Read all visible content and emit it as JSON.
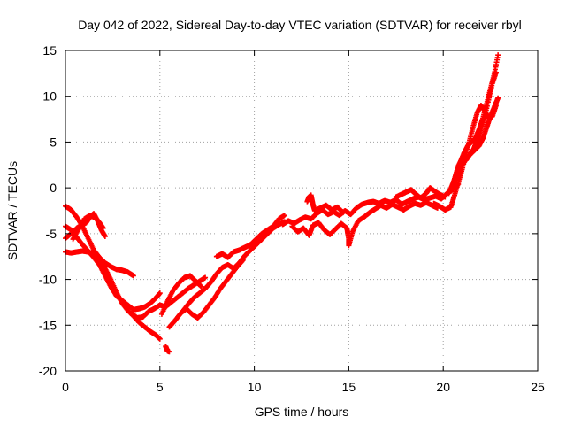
{
  "chart_data": {
    "type": "scatter",
    "title": "Day 042 of 2022, Sidereal Day-to-day VTEC variation (SDTVAR) for receiver rbyl",
    "xlabel": "GPS time / hours",
    "ylabel": "SDTVAR / TECUs",
    "xlim": [
      0,
      25
    ],
    "ylim": [
      -20,
      15
    ],
    "xticks": [
      0,
      5,
      10,
      15,
      20,
      25
    ],
    "yticks": [
      -20,
      -15,
      -10,
      -5,
      0,
      5,
      10,
      15
    ],
    "grid": true,
    "marker": "plus",
    "series": [
      {
        "name": "sdtvar-track-1",
        "color": "#ff0000",
        "points": [
          [
            0.0,
            -2.0
          ],
          [
            0.3,
            -2.4
          ],
          [
            0.6,
            -3.2
          ],
          [
            0.9,
            -4.2
          ],
          [
            1.2,
            -5.5
          ],
          [
            1.5,
            -6.8
          ],
          [
            1.8,
            -7.6
          ],
          [
            2.1,
            -8.2
          ],
          [
            2.4,
            -8.6
          ],
          [
            2.7,
            -8.9
          ],
          [
            3.0,
            -9.0
          ],
          [
            3.3,
            -9.2
          ],
          [
            3.6,
            -9.6
          ]
        ]
      },
      {
        "name": "sdtvar-track-2",
        "color": "#ff0000",
        "points": [
          [
            0.0,
            -4.2
          ],
          [
            0.3,
            -4.6
          ],
          [
            0.6,
            -5.4
          ],
          [
            0.9,
            -6.2
          ],
          [
            1.2,
            -6.9
          ],
          [
            1.5,
            -7.6
          ],
          [
            1.8,
            -8.4
          ],
          [
            2.1,
            -9.6
          ],
          [
            2.4,
            -10.8
          ],
          [
            2.7,
            -11.8
          ],
          [
            3.0,
            -12.3
          ],
          [
            3.3,
            -12.8
          ],
          [
            3.6,
            -13.3
          ],
          [
            3.9,
            -13.2
          ],
          [
            4.2,
            -13.0
          ],
          [
            4.5,
            -12.6
          ],
          [
            4.8,
            -12.0
          ],
          [
            5.0,
            -11.5
          ]
        ]
      },
      {
        "name": "sdtvar-track-3",
        "color": "#ff0000",
        "points": [
          [
            0.0,
            -7.0
          ],
          [
            0.3,
            -7.1
          ],
          [
            0.6,
            -7.0
          ],
          [
            0.9,
            -6.9
          ],
          [
            1.2,
            -7.0
          ],
          [
            1.5,
            -7.2
          ],
          [
            1.8,
            -7.8
          ],
          [
            2.1,
            -8.8
          ],
          [
            2.4,
            -10.0
          ],
          [
            2.7,
            -11.4
          ],
          [
            3.0,
            -12.6
          ],
          [
            3.3,
            -13.4
          ],
          [
            3.6,
            -14.0
          ],
          [
            3.9,
            -14.7
          ],
          [
            4.2,
            -15.2
          ],
          [
            4.5,
            -15.7
          ],
          [
            4.8,
            -16.1
          ],
          [
            5.0,
            -16.5
          ]
        ]
      },
      {
        "name": "sdtvar-track-4",
        "color": "#ff0000",
        "points": [
          [
            0.0,
            -5.5
          ],
          [
            0.3,
            -5.0
          ],
          [
            0.6,
            -4.4
          ],
          [
            0.9,
            -4.0
          ],
          [
            1.1,
            -3.8
          ],
          [
            1.3,
            -3.2
          ],
          [
            1.5,
            -2.8
          ],
          [
            1.7,
            -3.6
          ],
          [
            1.9,
            -4.6
          ],
          [
            2.1,
            -5.3
          ]
        ]
      },
      {
        "name": "sdtvar-track-5",
        "color": "#ff0000",
        "points": [
          [
            0.4,
            -5.6
          ],
          [
            0.7,
            -4.5
          ],
          [
            1.0,
            -3.4
          ],
          [
            1.3,
            -3.0
          ],
          [
            1.6,
            -3.3
          ],
          [
            1.8,
            -3.8
          ],
          [
            2.0,
            -4.4
          ]
        ]
      },
      {
        "name": "sdtvar-track-6",
        "color": "#ff0000",
        "points": [
          [
            3.5,
            -13.7
          ],
          [
            3.8,
            -14.2
          ],
          [
            4.1,
            -14.1
          ],
          [
            4.4,
            -13.5
          ],
          [
            4.7,
            -13.2
          ],
          [
            5.0,
            -12.8
          ],
          [
            5.3,
            -13.0
          ],
          [
            5.6,
            -12.5
          ],
          [
            5.9,
            -12.0
          ],
          [
            6.2,
            -11.5
          ],
          [
            6.5,
            -11.0
          ],
          [
            6.8,
            -10.6
          ],
          [
            7.1,
            -10.2
          ],
          [
            7.4,
            -9.8
          ]
        ]
      },
      {
        "name": "sdtvar-track-7",
        "color": "#ff0000",
        "points": [
          [
            5.1,
            -13.8
          ],
          [
            5.4,
            -12.4
          ],
          [
            5.7,
            -11.2
          ],
          [
            6.0,
            -10.4
          ],
          [
            6.3,
            -9.8
          ],
          [
            6.6,
            -9.6
          ],
          [
            6.9,
            -10.2
          ],
          [
            7.2,
            -10.8
          ]
        ]
      },
      {
        "name": "sdtvar-track-8",
        "color": "#ff0000",
        "points": [
          [
            5.5,
            -15.2
          ],
          [
            5.8,
            -14.5
          ],
          [
            6.1,
            -13.7
          ],
          [
            6.4,
            -13.2
          ],
          [
            6.7,
            -13.8
          ],
          [
            7.0,
            -14.2
          ],
          [
            7.3,
            -13.6
          ],
          [
            7.6,
            -12.8
          ],
          [
            7.9,
            -12.0
          ],
          [
            8.2,
            -11.0
          ],
          [
            8.5,
            -10.2
          ],
          [
            8.8,
            -9.4
          ],
          [
            9.1,
            -8.6
          ],
          [
            9.4,
            -7.9
          ]
        ]
      },
      {
        "name": "sdtvar-track-9",
        "color": "#ff0000",
        "points": [
          [
            6.2,
            -13.5
          ],
          [
            6.5,
            -12.7
          ],
          [
            6.8,
            -12.0
          ],
          [
            7.1,
            -11.5
          ],
          [
            7.4,
            -11.0
          ],
          [
            7.7,
            -10.3
          ],
          [
            8.0,
            -9.4
          ],
          [
            8.3,
            -8.7
          ],
          [
            8.6,
            -8.4
          ],
          [
            8.9,
            -8.8
          ],
          [
            9.2,
            -8.2
          ],
          [
            9.5,
            -7.4
          ],
          [
            9.8,
            -6.8
          ],
          [
            10.1,
            -6.2
          ],
          [
            10.4,
            -5.6
          ],
          [
            10.7,
            -5.0
          ],
          [
            11.0,
            -4.4
          ],
          [
            11.3,
            -4.0
          ],
          [
            11.6,
            -3.7
          ]
        ]
      },
      {
        "name": "sdtvar-track-10",
        "color": "#ff0000",
        "points": [
          [
            8.0,
            -7.5
          ],
          [
            8.3,
            -7.2
          ],
          [
            8.6,
            -7.6
          ],
          [
            8.9,
            -7.0
          ],
          [
            9.2,
            -6.8
          ],
          [
            9.5,
            -6.5
          ],
          [
            9.8,
            -6.2
          ],
          [
            10.1,
            -5.6
          ],
          [
            10.4,
            -5.0
          ],
          [
            10.7,
            -4.6
          ],
          [
            11.0,
            -4.2
          ],
          [
            11.3,
            -3.4
          ],
          [
            11.6,
            -3.0
          ]
        ]
      },
      {
        "name": "sdtvar-track-11",
        "color": "#ff0000",
        "points": [
          [
            5.3,
            -17.3
          ],
          [
            5.4,
            -17.8
          ],
          [
            5.5,
            -17.9
          ]
        ]
      },
      {
        "name": "sdtvar-track-12",
        "color": "#ff0000",
        "points": [
          [
            11.5,
            -4.0
          ],
          [
            11.8,
            -3.6
          ],
          [
            12.1,
            -3.9
          ],
          [
            12.4,
            -3.5
          ],
          [
            12.7,
            -3.2
          ],
          [
            13.0,
            -3.4
          ],
          [
            13.3,
            -2.8
          ],
          [
            13.6,
            -2.4
          ],
          [
            13.9,
            -2.9
          ],
          [
            14.2,
            -2.6
          ],
          [
            14.5,
            -3.0
          ],
          [
            14.8,
            -2.5
          ],
          [
            15.1,
            -2.9
          ],
          [
            15.4,
            -2.2
          ],
          [
            15.7,
            -1.8
          ],
          [
            16.0,
            -1.6
          ],
          [
            16.3,
            -1.5
          ],
          [
            16.6,
            -1.7
          ],
          [
            16.9,
            -1.4
          ],
          [
            17.2,
            -1.6
          ],
          [
            17.5,
            -1.3
          ],
          [
            17.8,
            -1.8
          ],
          [
            18.1,
            -1.5
          ],
          [
            18.4,
            -1.2
          ],
          [
            18.7,
            -1.0
          ],
          [
            19.0,
            -1.3
          ],
          [
            19.3,
            -1.1
          ],
          [
            19.6,
            -0.9
          ],
          [
            19.9,
            -1.2
          ],
          [
            20.2,
            -0.6
          ],
          [
            20.5,
            -0.2
          ],
          [
            20.8,
            0.4
          ]
        ]
      },
      {
        "name": "sdtvar-track-13",
        "color": "#ff0000",
        "points": [
          [
            12.0,
            -4.2
          ],
          [
            12.3,
            -4.8
          ],
          [
            12.6,
            -4.4
          ],
          [
            12.9,
            -5.2
          ],
          [
            13.1,
            -4.1
          ],
          [
            13.4,
            -3.8
          ],
          [
            13.7,
            -4.6
          ],
          [
            14.0,
            -5.1
          ],
          [
            14.3,
            -4.5
          ],
          [
            14.6,
            -3.9
          ],
          [
            14.9,
            -4.4
          ],
          [
            15.0,
            -5.6
          ],
          [
            15.0,
            -6.3
          ],
          [
            15.2,
            -4.8
          ],
          [
            15.5,
            -3.6
          ],
          [
            15.8,
            -3.2
          ],
          [
            16.1,
            -2.7
          ],
          [
            16.4,
            -2.3
          ],
          [
            16.7,
            -1.9
          ],
          [
            17.0,
            -2.2
          ],
          [
            17.3,
            -1.8
          ],
          [
            17.6,
            -2.1
          ],
          [
            17.9,
            -2.4
          ],
          [
            18.2,
            -2.0
          ],
          [
            18.5,
            -1.7
          ],
          [
            18.8,
            -1.9
          ],
          [
            19.1,
            -1.6
          ],
          [
            19.4,
            -1.9
          ],
          [
            19.7,
            -2.2
          ]
        ]
      },
      {
        "name": "sdtvar-track-14",
        "color": "#ff0000",
        "points": [
          [
            12.8,
            -1.5
          ],
          [
            12.9,
            -1.0
          ],
          [
            13.0,
            -0.8
          ],
          [
            13.1,
            -1.8
          ],
          [
            13.2,
            -2.5
          ],
          [
            13.5,
            -2.2
          ],
          [
            13.8,
            -1.9
          ],
          [
            14.1,
            -2.4
          ],
          [
            14.4,
            -2.1
          ],
          [
            14.7,
            -2.7
          ]
        ]
      },
      {
        "name": "sdtvar-track-15",
        "color": "#ff0000",
        "points": [
          [
            17.5,
            -1.0
          ],
          [
            17.8,
            -0.7
          ],
          [
            18.1,
            -0.4
          ],
          [
            18.3,
            -0.2
          ],
          [
            18.5,
            -0.6
          ],
          [
            18.8,
            -1.1
          ],
          [
            19.1,
            -0.6
          ],
          [
            19.3,
            0.0
          ],
          [
            19.5,
            -0.3
          ],
          [
            19.8,
            -0.7
          ],
          [
            20.1,
            -1.0
          ]
        ]
      },
      {
        "name": "sdtvar-track-16",
        "color": "#ff0000",
        "points": [
          [
            19.5,
            -1.7
          ],
          [
            19.8,
            -2.0
          ],
          [
            20.1,
            -2.4
          ],
          [
            20.4,
            -2.1
          ],
          [
            20.6,
            -0.8
          ],
          [
            20.8,
            0.6
          ],
          [
            21.0,
            2.0
          ],
          [
            21.2,
            3.6
          ],
          [
            21.4,
            5.2
          ],
          [
            21.6,
            6.8
          ],
          [
            21.8,
            8.2
          ],
          [
            22.0,
            9.0
          ],
          [
            22.2,
            8.4
          ],
          [
            22.4,
            7.6
          ],
          [
            22.6,
            7.8
          ],
          [
            22.8,
            9.0
          ]
        ]
      },
      {
        "name": "sdtvar-track-17",
        "color": "#ff0000",
        "points": [
          [
            20.3,
            -0.6
          ],
          [
            20.5,
            0.4
          ],
          [
            20.7,
            1.6
          ],
          [
            20.9,
            2.8
          ],
          [
            21.1,
            3.8
          ],
          [
            21.3,
            4.6
          ],
          [
            21.5,
            5.0
          ],
          [
            21.7,
            5.4
          ],
          [
            21.9,
            6.4
          ],
          [
            22.1,
            7.6
          ],
          [
            22.3,
            9.2
          ],
          [
            22.5,
            10.8
          ],
          [
            22.7,
            12.4
          ],
          [
            22.9,
            14.5
          ]
        ]
      },
      {
        "name": "sdtvar-track-18",
        "color": "#ff0000",
        "points": [
          [
            20.4,
            -0.2
          ],
          [
            20.6,
            1.0
          ],
          [
            20.8,
            2.4
          ],
          [
            21.0,
            3.2
          ],
          [
            21.2,
            3.0
          ],
          [
            21.4,
            3.6
          ],
          [
            21.6,
            4.2
          ],
          [
            21.8,
            5.2
          ],
          [
            22.0,
            6.4
          ],
          [
            22.2,
            7.8
          ],
          [
            22.4,
            9.6
          ],
          [
            22.6,
            11.4
          ],
          [
            22.8,
            12.6
          ]
        ]
      },
      {
        "name": "sdtvar-track-19",
        "color": "#ff0000",
        "points": [
          [
            20.5,
            0.2
          ],
          [
            20.7,
            1.2
          ],
          [
            20.9,
            2.2
          ],
          [
            21.1,
            2.8
          ],
          [
            21.3,
            3.4
          ],
          [
            21.5,
            3.8
          ],
          [
            21.7,
            4.2
          ],
          [
            21.9,
            4.6
          ],
          [
            22.1,
            5.4
          ],
          [
            22.3,
            6.6
          ],
          [
            22.5,
            7.8
          ],
          [
            22.7,
            8.8
          ],
          [
            22.9,
            9.8
          ]
        ]
      }
    ]
  }
}
